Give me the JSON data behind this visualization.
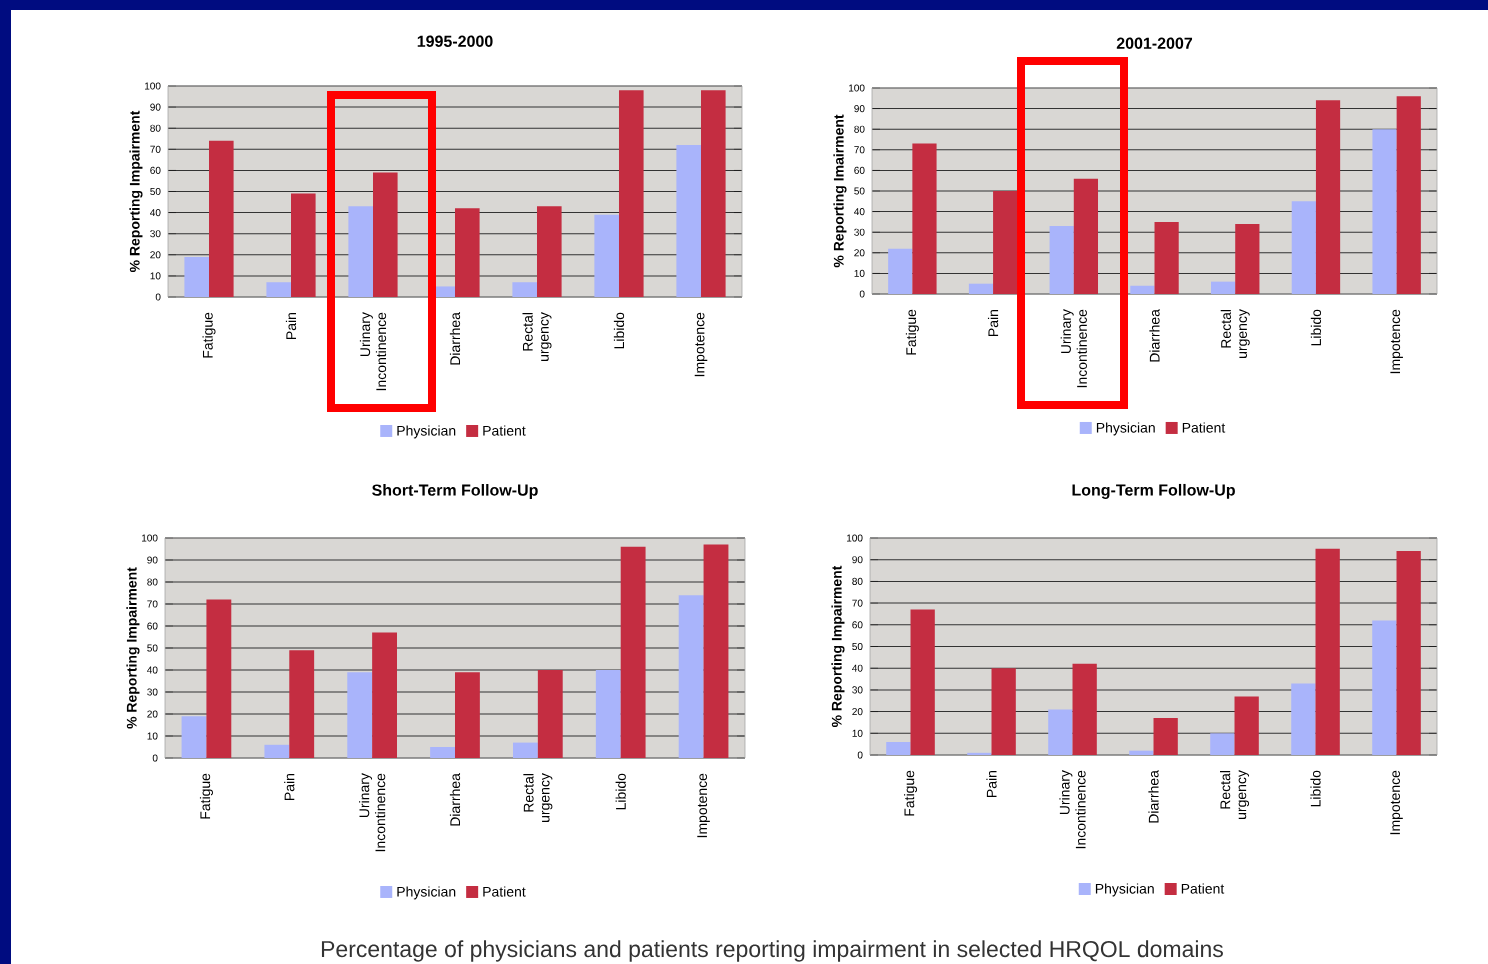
{
  "chart_data": [
    {
      "type": "bar",
      "title": "1995-2000",
      "ylabel": "% Reporting Impairment",
      "categories": [
        "Fatigue",
        "Pain",
        "Urinary Incontinence",
        "Diarrhea",
        "Rectal urgency",
        "Libido",
        "Impotence"
      ],
      "series": [
        {
          "name": "Physician",
          "color": "#a9b4fb",
          "values": [
            19,
            7,
            43,
            5,
            7,
            39,
            72
          ]
        },
        {
          "name": "Patient",
          "color": "#c42d41",
          "values": [
            74,
            49,
            59,
            42,
            43,
            98,
            98
          ]
        }
      ],
      "ylim": [
        0,
        100
      ],
      "yticks": [
        0,
        10,
        20,
        30,
        40,
        50,
        60,
        70,
        80,
        90,
        100
      ],
      "grid": "y",
      "legend": "bottom"
    },
    {
      "type": "bar",
      "title": "2001-2007",
      "ylabel": "% Reporting Imairment",
      "categories": [
        "Fatigue",
        "Pain",
        "Urinary Incontinence",
        "Diarrhea",
        "Rectal urgency",
        "Libido",
        "Impotence"
      ],
      "series": [
        {
          "name": "Physician",
          "color": "#a9b4fb",
          "values": [
            22,
            5,
            33,
            4,
            6,
            45,
            80
          ]
        },
        {
          "name": "Patient",
          "color": "#c42d41",
          "values": [
            73,
            50,
            56,
            35,
            34,
            94,
            96
          ]
        }
      ],
      "ylim": [
        0,
        100
      ],
      "yticks": [
        0,
        10,
        20,
        30,
        40,
        50,
        60,
        70,
        80,
        90,
        100
      ],
      "grid": "y",
      "legend": "bottom"
    },
    {
      "type": "bar",
      "title": "Short-Term Follow-Up",
      "ylabel": "% Reporting Impairment",
      "categories": [
        "Fatigue",
        "Pain",
        "Urinary Incontinence",
        "Diarrhea",
        "Rectal urgency",
        "Libido",
        "Impotence"
      ],
      "series": [
        {
          "name": "Physician",
          "color": "#a9b4fb",
          "values": [
            19,
            6,
            39,
            5,
            7,
            40,
            74
          ]
        },
        {
          "name": "Patient",
          "color": "#c42d41",
          "values": [
            72,
            49,
            57,
            39,
            40,
            96,
            97
          ]
        }
      ],
      "ylim": [
        0,
        100
      ],
      "yticks": [
        0,
        10,
        20,
        30,
        40,
        50,
        60,
        70,
        80,
        90,
        100
      ],
      "grid": "y",
      "legend": "bottom"
    },
    {
      "type": "bar",
      "title": "Long-Term Follow-Up",
      "ylabel": "% Reporting Impairment",
      "categories": [
        "Fatigue",
        "Pain",
        "Urinary Incontinence",
        "Diarrhea",
        "Rectal urgency",
        "Libido",
        "Impotence"
      ],
      "series": [
        {
          "name": "Physician",
          "color": "#a9b4fb",
          "values": [
            6,
            1,
            21,
            2,
            10,
            33,
            62
          ]
        },
        {
          "name": "Patient",
          "color": "#c42d41",
          "values": [
            67,
            40,
            42,
            17,
            27,
            95,
            94
          ]
        }
      ],
      "ylim": [
        0,
        100
      ],
      "yticks": [
        0,
        10,
        20,
        30,
        40,
        50,
        60,
        70,
        80,
        90,
        100
      ],
      "grid": "y",
      "legend": "bottom",
      "annotations": [
        "Percentage of physicians and patients reporting impairment in selected HRQOL domains"
      ]
    }
  ]
}
